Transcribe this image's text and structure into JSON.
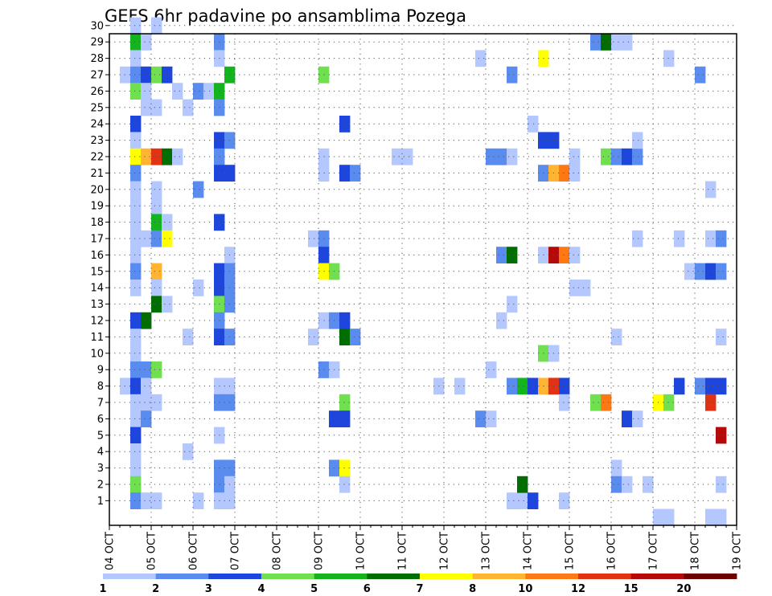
{
  "chart_data": {
    "type": "heatmap",
    "title": "GEFS 6hr padavine po ansamblima Pozega",
    "x_label": "",
    "y_label": "",
    "x_ticks": [
      "04 OCT",
      "05 OCT",
      "06 OCT",
      "07 OCT",
      "08 OCT",
      "09 OCT",
      "10 OCT",
      "11 OCT",
      "12 OCT",
      "13 OCT",
      "14 OCT",
      "15 OCT",
      "16 OCT",
      "17 OCT",
      "18 OCT",
      "19 OCT"
    ],
    "y_range": [
      1,
      30
    ],
    "grid": "dotted",
    "legend_position": "bottom",
    "levels": [
      "1",
      "2",
      "3",
      "4",
      "5",
      "6",
      "7",
      "8",
      "10",
      "12",
      "15",
      "20"
    ],
    "colors": [
      "#b4c8ff",
      "#5a8cf0",
      "#1e46dc",
      "#70e050",
      "#14b41e",
      "#006e00",
      "#ffff00",
      "#ffb432",
      "#ff7814",
      "#e13214",
      "#b40a0a",
      "#6e0000"
    ],
    "cells": [
      [
        "04 OCT 12",
        30,
        1
      ],
      [
        "04 OCT 12",
        29,
        5
      ],
      [
        "04 OCT 18",
        29,
        1
      ],
      [
        "04 OCT 12",
        28,
        1
      ],
      [
        "04 OCT 06",
        27,
        1
      ],
      [
        "04 OCT 12",
        27,
        2
      ],
      [
        "04 OCT 18",
        27,
        3
      ],
      [
        "05 OCT 00",
        27,
        4
      ],
      [
        "05 OCT 06",
        27,
        3
      ],
      [
        "04 OCT 12",
        26,
        4
      ],
      [
        "04 OCT 18",
        26,
        1
      ],
      [
        "04 OCT 18",
        25,
        1
      ],
      [
        "05 OCT 00",
        25,
        1
      ],
      [
        "04 OCT 12",
        24,
        3
      ],
      [
        "04 OCT 12",
        23,
        1
      ],
      [
        "04 OCT 12",
        22,
        7
      ],
      [
        "04 OCT 18",
        22,
        8
      ],
      [
        "05 OCT 00",
        22,
        10
      ],
      [
        "05 OCT 06",
        22,
        6
      ],
      [
        "05 OCT 12",
        22,
        1
      ],
      [
        "04 OCT 12",
        21,
        2
      ],
      [
        "04 OCT 12",
        20,
        1
      ],
      [
        "05 OCT 00",
        20,
        1
      ],
      [
        "04 OCT 12",
        19,
        1
      ],
      [
        "05 OCT 00",
        19,
        1
      ],
      [
        "04 OCT 12",
        18,
        1
      ],
      [
        "05 OCT 00",
        18,
        5
      ],
      [
        "05 OCT 06",
        18,
        1
      ],
      [
        "04 OCT 12",
        17,
        1
      ],
      [
        "04 OCT 18",
        17,
        1
      ],
      [
        "05 OCT 00",
        17,
        2
      ],
      [
        "05 OCT 06",
        17,
        7
      ],
      [
        "04 OCT 12",
        16,
        1
      ],
      [
        "04 OCT 12",
        15,
        2
      ],
      [
        "05 OCT 00",
        15,
        8
      ],
      [
        "04 OCT 12",
        14,
        1
      ],
      [
        "05 OCT 00",
        14,
        1
      ],
      [
        "05 OCT 00",
        13,
        6
      ],
      [
        "05 OCT 06",
        13,
        1
      ],
      [
        "04 OCT 12",
        12,
        3
      ],
      [
        "04 OCT 18",
        12,
        6
      ],
      [
        "04 OCT 12",
        11,
        1
      ],
      [
        "04 OCT 12",
        10,
        1
      ],
      [
        "04 OCT 12",
        9,
        2
      ],
      [
        "04 OCT 18",
        9,
        2
      ],
      [
        "05 OCT 00",
        9,
        4
      ],
      [
        "04 OCT 06",
        8,
        1
      ],
      [
        "04 OCT 12",
        8,
        3
      ],
      [
        "04 OCT 18",
        8,
        1
      ],
      [
        "04 OCT 12",
        7,
        1
      ],
      [
        "04 OCT 18",
        7,
        1
      ],
      [
        "05 OCT 00",
        7,
        1
      ],
      [
        "04 OCT 12",
        6,
        1
      ],
      [
        "04 OCT 18",
        6,
        2
      ],
      [
        "04 OCT 12",
        5,
        3
      ],
      [
        "04 OCT 12",
        4,
        1
      ],
      [
        "04 OCT 12",
        3,
        1
      ],
      [
        "04 OCT 12",
        2,
        4
      ],
      [
        "04 OCT 12",
        1,
        2
      ],
      [
        "04 OCT 18",
        1,
        1
      ],
      [
        "05 OCT 00",
        1,
        1
      ],
      [
        "05 OCT 00",
        30,
        1
      ],
      [
        "05 OCT 12",
        26,
        1
      ],
      [
        "05 OCT 18",
        25,
        1
      ],
      [
        "05 OCT 18",
        4,
        1
      ],
      [
        "05 OCT 18",
        11,
        1
      ],
      [
        "06 OCT 00",
        26,
        2
      ],
      [
        "06 OCT 06",
        26,
        1
      ],
      [
        "06 OCT 12",
        26,
        5
      ],
      [
        "06 OCT 00",
        20,
        2
      ],
      [
        "06 OCT 00",
        14,
        1
      ],
      [
        "06 OCT 00",
        1,
        1
      ],
      [
        "06 OCT 12",
        29,
        2
      ],
      [
        "06 OCT 12",
        28,
        1
      ],
      [
        "06 OCT 18",
        27,
        5
      ],
      [
        "06 OCT 12",
        25,
        2
      ],
      [
        "06 OCT 12",
        23,
        3
      ],
      [
        "06 OCT 18",
        23,
        2
      ],
      [
        "06 OCT 12",
        22,
        2
      ],
      [
        "06 OCT 12",
        21,
        3
      ],
      [
        "06 OCT 18",
        21,
        3
      ],
      [
        "06 OCT 12",
        18,
        3
      ],
      [
        "06 OCT 18",
        16,
        1
      ],
      [
        "06 OCT 12",
        15,
        3
      ],
      [
        "06 OCT 18",
        15,
        2
      ],
      [
        "06 OCT 12",
        14,
        3
      ],
      [
        "06 OCT 18",
        14,
        2
      ],
      [
        "06 OCT 12",
        13,
        4
      ],
      [
        "06 OCT 18",
        13,
        2
      ],
      [
        "06 OCT 12",
        12,
        2
      ],
      [
        "06 OCT 12",
        11,
        3
      ],
      [
        "06 OCT 18",
        11,
        2
      ],
      [
        "06 OCT 12",
        8,
        1
      ],
      [
        "06 OCT 18",
        8,
        1
      ],
      [
        "06 OCT 12",
        7,
        2
      ],
      [
        "06 OCT 18",
        7,
        2
      ],
      [
        "06 OCT 12",
        5,
        1
      ],
      [
        "06 OCT 12",
        3,
        2
      ],
      [
        "06 OCT 18",
        3,
        2
      ],
      [
        "06 OCT 12",
        2,
        2
      ],
      [
        "06 OCT 18",
        2,
        1
      ],
      [
        "06 OCT 12",
        1,
        1
      ],
      [
        "06 OCT 18",
        1,
        1
      ],
      [
        "09 OCT 00",
        27,
        4
      ],
      [
        "09 OCT 00",
        22,
        1
      ],
      [
        "09 OCT 00",
        21,
        1
      ],
      [
        "09 OCT 12",
        21,
        3
      ],
      [
        "09 OCT 18",
        21,
        2
      ],
      [
        "09 OCT 12",
        24,
        3
      ],
      [
        "08 OCT 18",
        17,
        1
      ],
      [
        "09 OCT 00",
        17,
        2
      ],
      [
        "09 OCT 00",
        16,
        3
      ],
      [
        "09 OCT 00",
        15,
        7
      ],
      [
        "09 OCT 06",
        15,
        4
      ],
      [
        "09 OCT 00",
        12,
        1
      ],
      [
        "09 OCT 06",
        12,
        2
      ],
      [
        "09 OCT 12",
        12,
        3
      ],
      [
        "08 OCT 18",
        11,
        1
      ],
      [
        "09 OCT 12",
        11,
        6
      ],
      [
        "09 OCT 18",
        11,
        2
      ],
      [
        "09 OCT 00",
        9,
        2
      ],
      [
        "09 OCT 06",
        9,
        1
      ],
      [
        "09 OCT 12",
        7,
        4
      ],
      [
        "09 OCT 06",
        6,
        3
      ],
      [
        "09 OCT 12",
        6,
        3
      ],
      [
        "09 OCT 06",
        3,
        2
      ],
      [
        "09 OCT 12",
        3,
        7
      ],
      [
        "09 OCT 12",
        2,
        1
      ],
      [
        "10 OCT 18",
        22,
        1
      ],
      [
        "11 OCT 00",
        22,
        1
      ],
      [
        "11 OCT 18",
        8,
        1
      ],
      [
        "12 OCT 18",
        28,
        1
      ],
      [
        "12 OCT 18",
        6,
        2
      ],
      [
        "13 OCT 00",
        6,
        1
      ],
      [
        "12 OCT 06",
        8,
        1
      ],
      [
        "13 OCT 00",
        22,
        2
      ],
      [
        "13 OCT 06",
        22,
        2
      ],
      [
        "13 OCT 12",
        22,
        1
      ],
      [
        "13 OCT 12",
        27,
        2
      ],
      [
        "13 OCT 06",
        16,
        2
      ],
      [
        "13 OCT 12",
        16,
        6
      ],
      [
        "13 OCT 12",
        13,
        1
      ],
      [
        "13 OCT 06",
        12,
        1
      ],
      [
        "13 OCT 00",
        9,
        1
      ],
      [
        "13 OCT 12",
        8,
        2
      ],
      [
        "13 OCT 18",
        8,
        5
      ],
      [
        "13 OCT 12",
        1,
        1
      ],
      [
        "13 OCT 18",
        1,
        1
      ],
      [
        "14 OCT 00",
        1,
        3
      ],
      [
        "13 OCT 18",
        2,
        6
      ],
      [
        "14 OCT 06",
        28,
        7
      ],
      [
        "14 OCT 00",
        24,
        1
      ],
      [
        "14 OCT 06",
        23,
        3
      ],
      [
        "14 OCT 12",
        23,
        3
      ],
      [
        "14 OCT 06",
        21,
        2
      ],
      [
        "14 OCT 12",
        21,
        8
      ],
      [
        "14 OCT 18",
        21,
        9
      ],
      [
        "14 OCT 06",
        16,
        1
      ],
      [
        "14 OCT 12",
        16,
        11
      ],
      [
        "14 OCT 18",
        16,
        9
      ],
      [
        "15 OCT 00",
        16,
        1
      ],
      [
        "14 OCT 06",
        10,
        4
      ],
      [
        "14 OCT 12",
        10,
        1
      ],
      [
        "14 OCT 00",
        8,
        3
      ],
      [
        "14 OCT 06",
        8,
        8
      ],
      [
        "14 OCT 12",
        8,
        10
      ],
      [
        "14 OCT 18",
        8,
        3
      ],
      [
        "14 OCT 18",
        7,
        1
      ],
      [
        "14 OCT 18",
        1,
        1
      ],
      [
        "15 OCT 00",
        22,
        1
      ],
      [
        "15 OCT 00",
        21,
        1
      ],
      [
        "15 OCT 00",
        14,
        1
      ],
      [
        "15 OCT 06",
        14,
        1
      ],
      [
        "15 OCT 12",
        7,
        4
      ],
      [
        "15 OCT 18",
        7,
        9
      ],
      [
        "15 OCT 12",
        29,
        2
      ],
      [
        "15 OCT 18",
        29,
        6
      ],
      [
        "16 OCT 00",
        29,
        1
      ],
      [
        "16 OCT 06",
        29,
        1
      ],
      [
        "15 OCT 18",
        22,
        4
      ],
      [
        "16 OCT 00",
        22,
        2
      ],
      [
        "16 OCT 06",
        22,
        3
      ],
      [
        "16 OCT 12",
        22,
        2
      ],
      [
        "16 OCT 12",
        23,
        1
      ],
      [
        "16 OCT 00",
        11,
        1
      ],
      [
        "16 OCT 00",
        3,
        1
      ],
      [
        "16 OCT 06",
        6,
        3
      ],
      [
        "16 OCT 12",
        6,
        1
      ],
      [
        "16 OCT 00",
        2,
        2
      ],
      [
        "16 OCT 06",
        2,
        1
      ],
      [
        "16 OCT 18",
        2,
        1
      ],
      [
        "16 OCT 12",
        17,
        1
      ],
      [
        "17 OCT 06",
        28,
        1
      ],
      [
        "17 OCT 00",
        7,
        7
      ],
      [
        "17 OCT 06",
        7,
        4
      ],
      [
        "17 OCT 00",
        0,
        1
      ],
      [
        "17 OCT 06",
        0,
        1
      ],
      [
        "17 OCT 12",
        17,
        1
      ],
      [
        "17 OCT 12",
        8,
        3
      ],
      [
        "18 OCT 00",
        27,
        2
      ],
      [
        "18 OCT 06",
        20,
        1
      ],
      [
        "17 OCT 18",
        15,
        1
      ],
      [
        "18 OCT 00",
        15,
        2
      ],
      [
        "18 OCT 06",
        15,
        3
      ],
      [
        "18 OCT 12",
        15,
        2
      ],
      [
        "18 OCT 06",
        17,
        1
      ],
      [
        "18 OCT 12",
        17,
        2
      ],
      [
        "18 OCT 00",
        8,
        2
      ],
      [
        "18 OCT 06",
        8,
        3
      ],
      [
        "18 OCT 12",
        8,
        3
      ],
      [
        "18 OCT 06",
        7,
        10
      ],
      [
        "18 OCT 12",
        5,
        11
      ],
      [
        "18 OCT 12",
        11,
        1
      ],
      [
        "18 OCT 12",
        2,
        1
      ],
      [
        "18 OCT 06",
        0,
        1
      ],
      [
        "18 OCT 12",
        0,
        1
      ]
    ]
  }
}
